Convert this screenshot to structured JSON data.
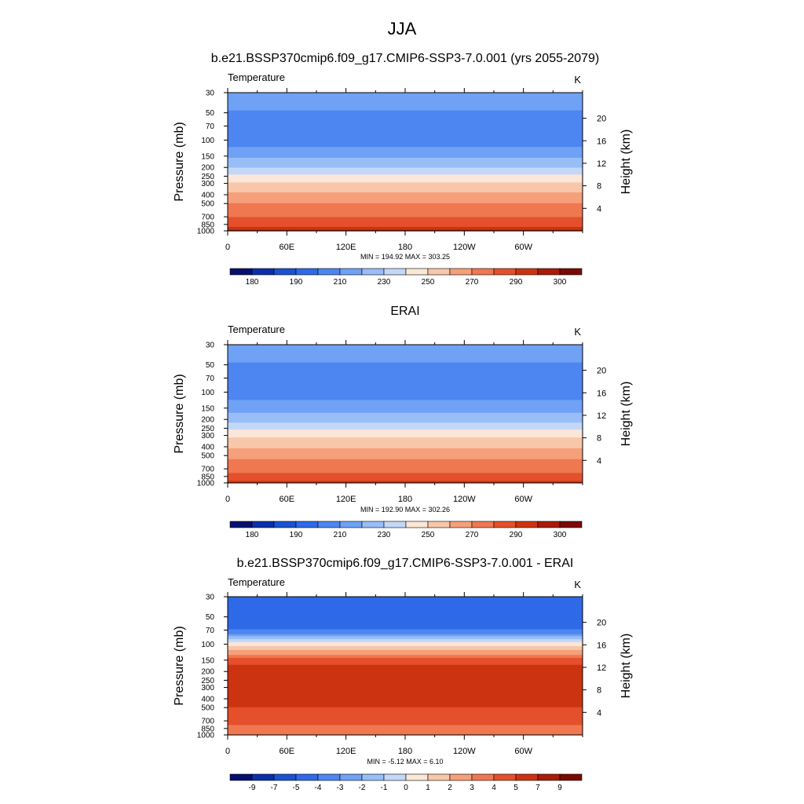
{
  "figure": {
    "title": "JJA"
  },
  "chart_data": [
    {
      "type": "heatmap",
      "title": "b.e21.BSSP370cmip6.f09_g17.CMIP6-SSP3-7.0.001 (yrs 2055-2079)",
      "field_label": "Temperature",
      "units": "K",
      "xlabel": "",
      "ylabel": "Pressure (mb)",
      "y2label": "Height (km)",
      "x_ticks": [
        "0",
        "60E",
        "120E",
        "180",
        "120W",
        "60W"
      ],
      "x_tick_values": [
        0,
        60,
        120,
        180,
        240,
        300
      ],
      "xlim": [
        0,
        360
      ],
      "y_ticks": [
        "30",
        "50",
        "70",
        "100",
        "150",
        "200",
        "250",
        "300",
        "400",
        "500",
        "700",
        "850",
        "1000"
      ],
      "ylim": [
        1000,
        30
      ],
      "y2_ticks": [
        "20",
        "16",
        "12",
        "8",
        "4"
      ],
      "y2_tick_values": [
        20,
        16,
        12,
        8,
        4
      ],
      "stats": "MIN = 194.92  MAX = 303.25",
      "colorbar_labels": [
        "180",
        "190",
        "210",
        "230",
        "250",
        "270",
        "290",
        "300"
      ],
      "colorbar_levels": [
        180,
        185,
        190,
        200,
        210,
        220,
        230,
        240,
        250,
        260,
        270,
        280,
        290,
        295,
        300
      ],
      "profile": {
        "p": [
          30,
          42,
          55,
          70,
          100,
          130,
          150,
          170,
          200,
          230,
          250,
          280,
          300,
          350,
          400,
          450,
          500,
          600,
          700,
          800,
          850,
          925,
          1000
        ],
        "v": [
          213,
          213,
          206,
          206,
          206,
          212,
          217,
          224,
          230,
          237,
          243,
          247,
          251,
          257,
          262,
          267,
          270,
          276,
          280,
          284,
          287,
          292,
          296
        ]
      },
      "palette": "temp"
    },
    {
      "type": "heatmap",
      "title": "ERAI",
      "field_label": "Temperature",
      "units": "K",
      "xlabel": "",
      "ylabel": "Pressure (mb)",
      "y2label": "Height (km)",
      "x_ticks": [
        "0",
        "60E",
        "120E",
        "180",
        "120W",
        "60W"
      ],
      "x_tick_values": [
        0,
        60,
        120,
        180,
        240,
        300
      ],
      "xlim": [
        0,
        360
      ],
      "y_ticks": [
        "30",
        "50",
        "70",
        "100",
        "150",
        "200",
        "250",
        "300",
        "400",
        "500",
        "700",
        "850",
        "1000"
      ],
      "ylim": [
        1000,
        30
      ],
      "y2_ticks": [
        "20",
        "16",
        "12",
        "8",
        "4"
      ],
      "y2_tick_values": [
        20,
        16,
        12,
        8,
        4
      ],
      "stats": "MIN = 192.90  MAX = 302.26",
      "colorbar_labels": [
        "180",
        "190",
        "210",
        "230",
        "250",
        "270",
        "290",
        "300"
      ],
      "colorbar_levels": [
        180,
        185,
        190,
        200,
        210,
        220,
        230,
        240,
        250,
        260,
        270,
        280,
        290,
        295,
        300
      ],
      "profile": {
        "p": [
          30,
          42,
          55,
          70,
          100,
          130,
          150,
          170,
          200,
          230,
          250,
          280,
          300,
          350,
          400,
          450,
          500,
          600,
          700,
          800,
          850,
          925,
          1000
        ],
        "v": [
          213,
          213,
          206,
          206,
          206,
          211,
          214,
          220,
          226,
          232,
          238,
          243,
          248,
          253,
          258,
          264,
          267,
          273,
          277,
          281,
          284,
          288,
          292
        ]
      },
      "palette": "temp"
    },
    {
      "type": "heatmap",
      "title": "b.e21.BSSP370cmip6.f09_g17.CMIP6-SSP3-7.0.001 - ERAI",
      "field_label": "Temperature",
      "units": "K",
      "xlabel": "",
      "ylabel": "Pressure (mb)",
      "y2label": "Height (km)",
      "x_ticks": [
        "0",
        "60E",
        "120E",
        "180",
        "120W",
        "60W"
      ],
      "x_tick_values": [
        0,
        60,
        120,
        180,
        240,
        300
      ],
      "xlim": [
        0,
        360
      ],
      "y_ticks": [
        "30",
        "50",
        "70",
        "100",
        "150",
        "200",
        "250",
        "300",
        "400",
        "500",
        "700",
        "850",
        "1000"
      ],
      "ylim": [
        1000,
        30
      ],
      "y2_ticks": [
        "20",
        "16",
        "12",
        "8",
        "4"
      ],
      "y2_tick_values": [
        20,
        16,
        12,
        8,
        4
      ],
      "stats": "MIN =  -5.12  MAX =   6.10",
      "colorbar_labels": [
        "-9",
        "-7",
        "-5",
        "-4",
        "-3",
        "-2",
        "-1",
        "0",
        "1",
        "2",
        "3",
        "4",
        "5",
        "7",
        "9"
      ],
      "colorbar_levels": [
        -9,
        -7,
        -5,
        -4,
        -3,
        -2,
        -1,
        0,
        1,
        2,
        3,
        4,
        5,
        7,
        9
      ],
      "profile": {
        "p": [
          30,
          55,
          68,
          75,
          90,
          100,
          110,
          130,
          150,
          200,
          250,
          300,
          400,
          500,
          600,
          700,
          800,
          900,
          1000
        ],
        "v": [
          -4.5,
          -4.5,
          -4.0,
          -3.5,
          -0.5,
          0.5,
          1.5,
          3.0,
          4.5,
          5.6,
          5.6,
          5.6,
          5.3,
          5.0,
          4.6,
          4.3,
          3.9,
          3.4,
          3.2
        ]
      },
      "palette": "diff"
    }
  ]
}
